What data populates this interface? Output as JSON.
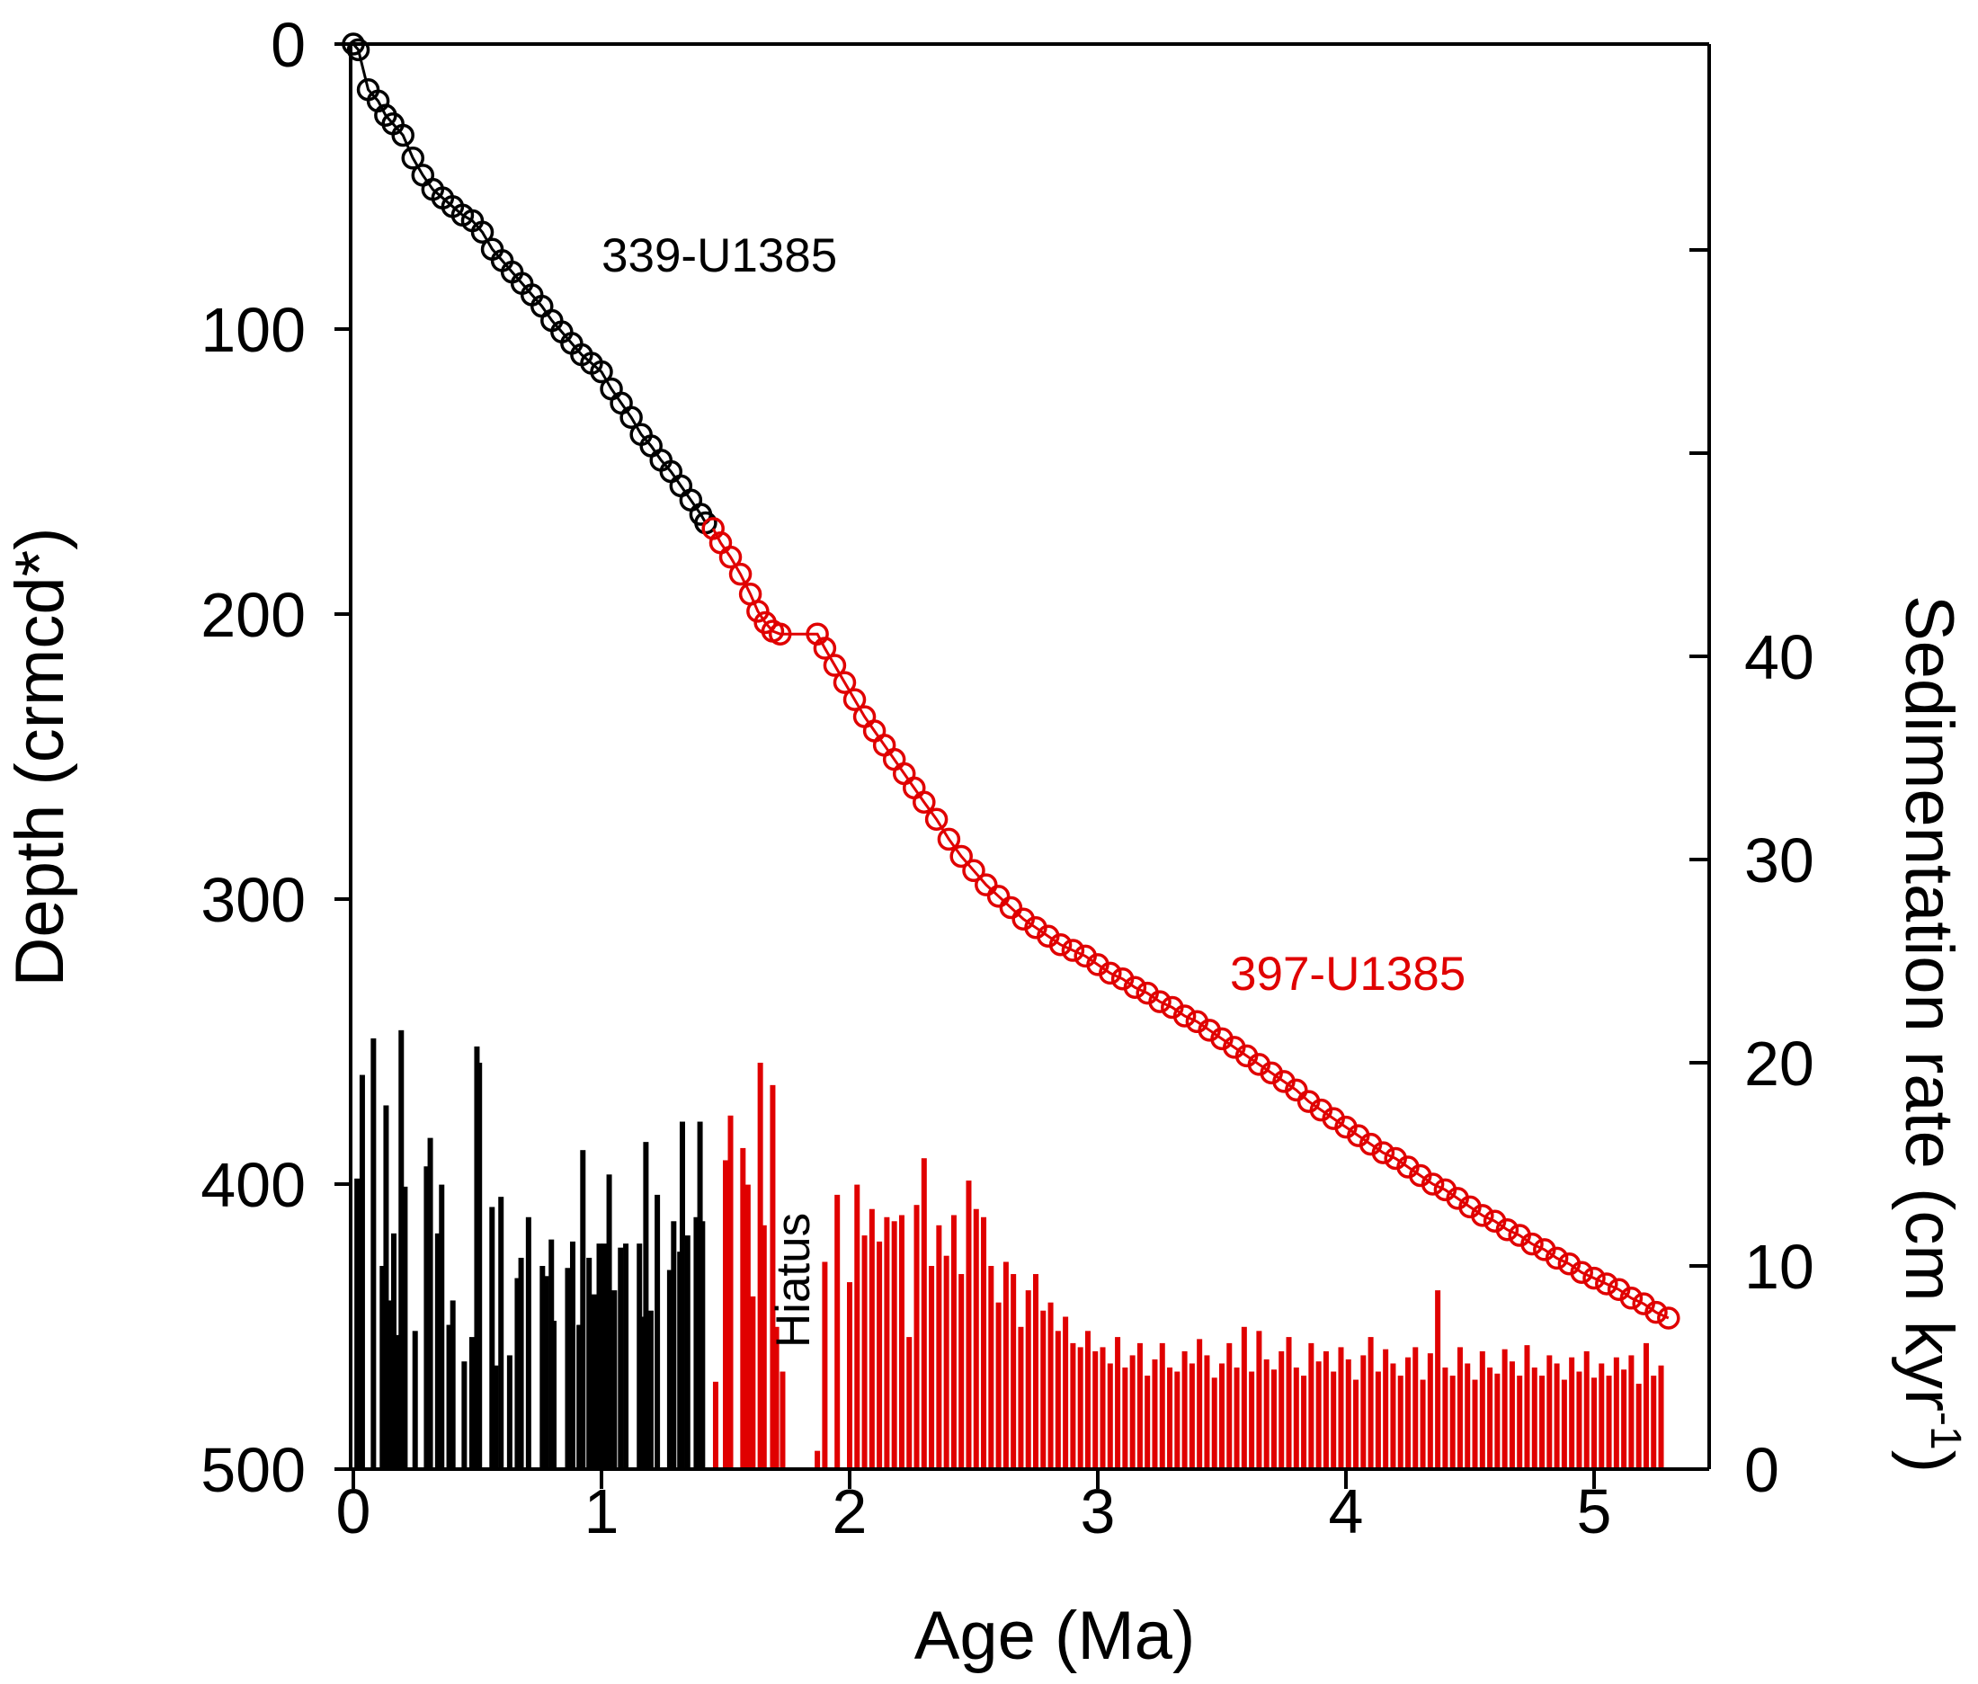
{
  "chart_data": {
    "type": "line+bar",
    "xlabel": "Age (Ma)",
    "ylabel_left": "Depth (crmcd*)",
    "ylabel_right": "Sedimentation rate (cm kyr",
    "ylabel_right_sup": "-1",
    "ylabel_right_end": ")",
    "xlim": [
      0,
      5.5
    ],
    "ylim_left": [
      500,
      0
    ],
    "ylim_right": [
      0,
      70
    ],
    "x_ticks": [
      "0",
      "1",
      "2",
      "3",
      "4",
      "5"
    ],
    "y_left_ticks": [
      "0",
      "100",
      "200",
      "300",
      "400",
      "500"
    ],
    "y_right_ticks": [
      "0",
      "10",
      "20",
      "30",
      "40"
    ],
    "colors": {
      "site339": "#000000",
      "site397": "#e00000"
    },
    "annotations": {
      "site339_label": "339-U1385",
      "site397_label": "397-U1385",
      "hiatus": "Hiatus"
    },
    "depth_series": [
      {
        "name": "339-U1385",
        "color": "#000000",
        "points": [
          [
            0,
            0
          ],
          [
            0.02,
            2
          ],
          [
            0.06,
            16
          ],
          [
            0.1,
            20
          ],
          [
            0.13,
            25
          ],
          [
            0.16,
            28
          ],
          [
            0.2,
            32
          ],
          [
            0.24,
            40
          ],
          [
            0.28,
            46
          ],
          [
            0.32,
            51
          ],
          [
            0.36,
            54
          ],
          [
            0.4,
            57
          ],
          [
            0.44,
            60
          ],
          [
            0.48,
            62
          ],
          [
            0.52,
            66
          ],
          [
            0.56,
            72
          ],
          [
            0.6,
            76
          ],
          [
            0.64,
            80
          ],
          [
            0.68,
            84
          ],
          [
            0.72,
            88
          ],
          [
            0.76,
            92
          ],
          [
            0.8,
            97
          ],
          [
            0.84,
            101
          ],
          [
            0.88,
            105
          ],
          [
            0.92,
            109
          ],
          [
            0.96,
            112
          ],
          [
            1.0,
            115
          ],
          [
            1.04,
            121
          ],
          [
            1.08,
            126
          ],
          [
            1.12,
            131
          ],
          [
            1.16,
            137
          ],
          [
            1.2,
            141
          ],
          [
            1.24,
            146
          ],
          [
            1.28,
            150
          ],
          [
            1.32,
            155
          ],
          [
            1.36,
            160
          ],
          [
            1.4,
            165
          ],
          [
            1.42,
            168
          ]
        ]
      },
      {
        "name": "397-U1385",
        "color": "#e00000",
        "points": [
          [
            1.45,
            170
          ],
          [
            1.48,
            175
          ],
          [
            1.52,
            180
          ],
          [
            1.56,
            186
          ],
          [
            1.6,
            193
          ],
          [
            1.63,
            199
          ],
          [
            1.66,
            203
          ],
          [
            1.69,
            206
          ],
          [
            1.72,
            207
          ],
          [
            1.87,
            207
          ],
          [
            1.9,
            212
          ],
          [
            1.94,
            218
          ],
          [
            1.98,
            224
          ],
          [
            2.02,
            230
          ],
          [
            2.06,
            236
          ],
          [
            2.1,
            241
          ],
          [
            2.14,
            246
          ],
          [
            2.18,
            251
          ],
          [
            2.22,
            256
          ],
          [
            2.26,
            261
          ],
          [
            2.3,
            266
          ],
          [
            2.35,
            272
          ],
          [
            2.4,
            279
          ],
          [
            2.45,
            285
          ],
          [
            2.5,
            290
          ],
          [
            2.55,
            295
          ],
          [
            2.6,
            299
          ],
          [
            2.65,
            303
          ],
          [
            2.7,
            307
          ],
          [
            2.75,
            310
          ],
          [
            2.8,
            313
          ],
          [
            2.85,
            316
          ],
          [
            2.9,
            318
          ],
          [
            2.95,
            320
          ],
          [
            3.0,
            323
          ],
          [
            3.05,
            326
          ],
          [
            3.1,
            328
          ],
          [
            3.15,
            331
          ],
          [
            3.2,
            333
          ],
          [
            3.25,
            336
          ],
          [
            3.3,
            338
          ],
          [
            3.35,
            341
          ],
          [
            3.4,
            343
          ],
          [
            3.45,
            346
          ],
          [
            3.5,
            349
          ],
          [
            3.55,
            352
          ],
          [
            3.6,
            355
          ],
          [
            3.65,
            358
          ],
          [
            3.7,
            361
          ],
          [
            3.75,
            364
          ],
          [
            3.8,
            367
          ],
          [
            3.85,
            371
          ],
          [
            3.9,
            374
          ],
          [
            3.95,
            377
          ],
          [
            4.0,
            380
          ],
          [
            4.05,
            383
          ],
          [
            4.1,
            386
          ],
          [
            4.15,
            389
          ],
          [
            4.2,
            391
          ],
          [
            4.25,
            394
          ],
          [
            4.3,
            397
          ],
          [
            4.35,
            400
          ],
          [
            4.4,
            402
          ],
          [
            4.45,
            405
          ],
          [
            4.5,
            408
          ],
          [
            4.55,
            411
          ],
          [
            4.6,
            413
          ],
          [
            4.65,
            416
          ],
          [
            4.7,
            418
          ],
          [
            4.75,
            421
          ],
          [
            4.8,
            423
          ],
          [
            4.85,
            426
          ],
          [
            4.9,
            428
          ],
          [
            4.95,
            431
          ],
          [
            5.0,
            433
          ],
          [
            5.05,
            435
          ],
          [
            5.1,
            437
          ],
          [
            5.15,
            440
          ],
          [
            5.2,
            442
          ],
          [
            5.25,
            445
          ],
          [
            5.3,
            447
          ]
        ]
      }
    ],
    "sedrate_series": [
      {
        "name": "339-U1385",
        "color": "#000000",
        "bars": [
          [
            0.015,
            14.3
          ],
          [
            0.036,
            19.4
          ],
          [
            0.081,
            21.2
          ],
          [
            0.117,
            10.0
          ],
          [
            0.132,
            17.9
          ],
          [
            0.147,
            8.3
          ],
          [
            0.163,
            11.6
          ],
          [
            0.178,
            6.6
          ],
          [
            0.193,
            21.6
          ],
          [
            0.208,
            13.9
          ],
          [
            0.249,
            6.8
          ],
          [
            0.295,
            14.9
          ],
          [
            0.31,
            16.3
          ],
          [
            0.34,
            11.6
          ],
          [
            0.356,
            14.0
          ],
          [
            0.386,
            7.1
          ],
          [
            0.401,
            8.3
          ],
          [
            0.447,
            5.3
          ],
          [
            0.478,
            6.5
          ],
          [
            0.498,
            20.8
          ],
          [
            0.508,
            20.0
          ],
          [
            0.559,
            12.9
          ],
          [
            0.574,
            5.1
          ],
          [
            0.595,
            13.4
          ],
          [
            0.63,
            5.6
          ],
          [
            0.661,
            9.4
          ],
          [
            0.676,
            10.4
          ],
          [
            0.706,
            12.4
          ],
          [
            0.762,
            10.0
          ],
          [
            0.777,
            9.5
          ],
          [
            0.798,
            11.3
          ],
          [
            0.808,
            7.3
          ],
          [
            0.864,
            9.9
          ],
          [
            0.884,
            11.2
          ],
          [
            0.91,
            7.1
          ],
          [
            0.925,
            15.7
          ],
          [
            0.95,
            10.4
          ],
          [
            0.971,
            8.6
          ],
          [
            0.991,
            11.1
          ],
          [
            1.011,
            11.1
          ],
          [
            1.031,
            14.5
          ],
          [
            1.052,
            8.8
          ],
          [
            1.077,
            10.9
          ],
          [
            1.098,
            11.1
          ],
          [
            1.153,
            11.1
          ],
          [
            1.164,
            7.5
          ],
          [
            1.179,
            16.1
          ],
          [
            1.199,
            7.8
          ],
          [
            1.225,
            13.5
          ],
          [
            1.275,
            9.8
          ],
          [
            1.291,
            12.2
          ],
          [
            1.316,
            10.7
          ],
          [
            1.326,
            17.1
          ],
          [
            1.347,
            11.5
          ],
          [
            1.382,
            12.4
          ],
          [
            1.397,
            17.1
          ],
          [
            1.407,
            12.2
          ]
        ]
      },
      {
        "name": "397-U1385",
        "color": "#e00000",
        "bars": [
          [
            1.46,
            4.3
          ],
          [
            1.5,
            15.2
          ],
          [
            1.52,
            17.4
          ],
          [
            1.57,
            15.8
          ],
          [
            1.59,
            14.0
          ],
          [
            1.61,
            8.5
          ],
          [
            1.64,
            20.0
          ],
          [
            1.655,
            12.0
          ],
          [
            1.69,
            18.9
          ],
          [
            1.705,
            7.0
          ],
          [
            1.73,
            4.8
          ],
          [
            1.87,
            0.9
          ],
          [
            1.9,
            10.2
          ],
          [
            1.95,
            13.5
          ],
          [
            2.0,
            9.2
          ],
          [
            2.03,
            14.0
          ],
          [
            2.06,
            11.5
          ],
          [
            2.09,
            12.8
          ],
          [
            2.12,
            11.2
          ],
          [
            2.15,
            12.4
          ],
          [
            2.18,
            12.2
          ],
          [
            2.21,
            12.5
          ],
          [
            2.24,
            6.5
          ],
          [
            2.27,
            13.0
          ],
          [
            2.3,
            15.3
          ],
          [
            2.33,
            10.0
          ],
          [
            2.36,
            12.0
          ],
          [
            2.39,
            10.5
          ],
          [
            2.42,
            12.5
          ],
          [
            2.45,
            9.6
          ],
          [
            2.48,
            14.2
          ],
          [
            2.51,
            12.8
          ],
          [
            2.54,
            12.4
          ],
          [
            2.57,
            10.0
          ],
          [
            2.6,
            8.2
          ],
          [
            2.63,
            10.2
          ],
          [
            2.66,
            9.6
          ],
          [
            2.69,
            7.0
          ],
          [
            2.72,
            8.8
          ],
          [
            2.75,
            9.6
          ],
          [
            2.78,
            7.8
          ],
          [
            2.81,
            8.2
          ],
          [
            2.84,
            6.8
          ],
          [
            2.87,
            7.5
          ],
          [
            2.9,
            6.2
          ],
          [
            2.93,
            6.0
          ],
          [
            2.96,
            6.8
          ],
          [
            2.99,
            5.8
          ],
          [
            3.02,
            6.0
          ],
          [
            3.05,
            5.2
          ],
          [
            3.08,
            6.5
          ],
          [
            3.11,
            5.0
          ],
          [
            3.14,
            5.6
          ],
          [
            3.17,
            6.2
          ],
          [
            3.2,
            4.6
          ],
          [
            3.23,
            5.4
          ],
          [
            3.26,
            6.2
          ],
          [
            3.29,
            5.0
          ],
          [
            3.32,
            4.8
          ],
          [
            3.35,
            5.8
          ],
          [
            3.38,
            5.2
          ],
          [
            3.41,
            6.4
          ],
          [
            3.44,
            5.6
          ],
          [
            3.47,
            4.5
          ],
          [
            3.5,
            5.2
          ],
          [
            3.53,
            6.2
          ],
          [
            3.56,
            5.0
          ],
          [
            3.59,
            7.0
          ],
          [
            3.62,
            4.8
          ],
          [
            3.65,
            6.8
          ],
          [
            3.68,
            5.4
          ],
          [
            3.71,
            4.9
          ],
          [
            3.74,
            5.8
          ],
          [
            3.77,
            6.5
          ],
          [
            3.8,
            5.0
          ],
          [
            3.83,
            4.6
          ],
          [
            3.86,
            6.2
          ],
          [
            3.89,
            5.3
          ],
          [
            3.92,
            5.8
          ],
          [
            3.95,
            4.8
          ],
          [
            3.98,
            6.0
          ],
          [
            4.01,
            5.4
          ],
          [
            4.04,
            4.4
          ],
          [
            4.07,
            5.6
          ],
          [
            4.1,
            6.5
          ],
          [
            4.13,
            4.8
          ],
          [
            4.16,
            5.9
          ],
          [
            4.19,
            5.2
          ],
          [
            4.22,
            4.6
          ],
          [
            4.25,
            5.5
          ],
          [
            4.28,
            6.0
          ],
          [
            4.31,
            4.4
          ],
          [
            4.34,
            5.7
          ],
          [
            4.37,
            8.8
          ],
          [
            4.4,
            5.0
          ],
          [
            4.43,
            4.6
          ],
          [
            4.46,
            6.0
          ],
          [
            4.49,
            5.2
          ],
          [
            4.52,
            4.4
          ],
          [
            4.55,
            5.8
          ],
          [
            4.58,
            5.0
          ],
          [
            4.61,
            4.7
          ],
          [
            4.64,
            5.9
          ],
          [
            4.67,
            5.3
          ],
          [
            4.7,
            4.6
          ],
          [
            4.73,
            6.1
          ],
          [
            4.76,
            5.0
          ],
          [
            4.79,
            4.6
          ],
          [
            4.82,
            5.6
          ],
          [
            4.85,
            5.2
          ],
          [
            4.88,
            4.4
          ],
          [
            4.91,
            5.5
          ],
          [
            4.94,
            4.8
          ],
          [
            4.97,
            5.8
          ],
          [
            5.0,
            4.5
          ],
          [
            5.03,
            5.2
          ],
          [
            5.06,
            4.6
          ],
          [
            5.09,
            5.5
          ],
          [
            5.12,
            4.9
          ],
          [
            5.15,
            5.6
          ],
          [
            5.18,
            4.2
          ],
          [
            5.21,
            6.2
          ],
          [
            5.24,
            4.6
          ],
          [
            5.27,
            5.1
          ]
        ]
      }
    ]
  }
}
